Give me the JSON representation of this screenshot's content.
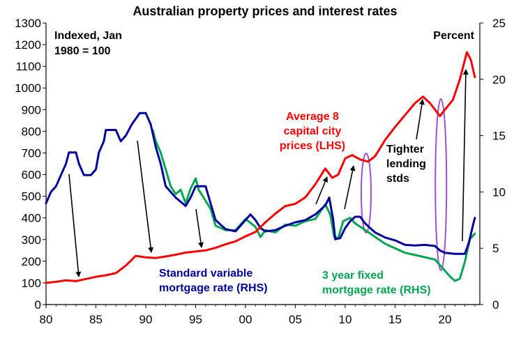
{
  "chart_data": {
    "type": "line",
    "title": "Australian property prices and interest rates",
    "left_axis": {
      "label_lines": [
        "Indexed, Jan",
        "1980 = 100"
      ],
      "range": [
        0,
        1300
      ],
      "ticks": [
        0,
        100,
        200,
        300,
        400,
        500,
        600,
        700,
        800,
        900,
        1000,
        1100,
        1200,
        1300
      ]
    },
    "right_axis": {
      "label": "Percent",
      "range": [
        0,
        25
      ],
      "ticks": [
        0,
        5,
        10,
        15,
        20,
        25
      ]
    },
    "x_axis": {
      "range": [
        1980,
        2023.5
      ],
      "ticks": [
        {
          "value": 1980,
          "label": "80"
        },
        {
          "value": 1985,
          "label": "85"
        },
        {
          "value": 1990,
          "label": "90"
        },
        {
          "value": 1995,
          "label": "95"
        },
        {
          "value": 2000,
          "label": "00"
        },
        {
          "value": 2005,
          "label": "05"
        },
        {
          "value": 2010,
          "label": "10"
        },
        {
          "value": 2015,
          "label": "15"
        },
        {
          "value": 2020,
          "label": "20"
        }
      ]
    },
    "grid": false,
    "series": [
      {
        "name": "Average 8 capital city prices (LHS)",
        "axis": "left",
        "color": "#ff0000",
        "label_lines": [
          "Average 8",
          "capital city",
          "prices (LHS)"
        ],
        "points": [
          [
            1980,
            100
          ],
          [
            1981,
            105
          ],
          [
            1982,
            112
          ],
          [
            1983,
            108
          ],
          [
            1984,
            118
          ],
          [
            1985,
            128
          ],
          [
            1986,
            135
          ],
          [
            1987,
            145
          ],
          [
            1988,
            180
          ],
          [
            1989,
            225
          ],
          [
            1990,
            218
          ],
          [
            1991,
            215
          ],
          [
            1992,
            222
          ],
          [
            1993,
            230
          ],
          [
            1994,
            240
          ],
          [
            1995,
            245
          ],
          [
            1996,
            250
          ],
          [
            1997,
            262
          ],
          [
            1998,
            278
          ],
          [
            1999,
            292
          ],
          [
            2000,
            315
          ],
          [
            2001,
            335
          ],
          [
            2002,
            380
          ],
          [
            2003,
            420
          ],
          [
            2004,
            455
          ],
          [
            2005,
            465
          ],
          [
            2006,
            495
          ],
          [
            2007,
            555
          ],
          [
            2008,
            628
          ],
          [
            2008.7,
            585
          ],
          [
            2009.3,
            600
          ],
          [
            2010,
            675
          ],
          [
            2010.7,
            690
          ],
          [
            2011.5,
            670
          ],
          [
            2012.3,
            660
          ],
          [
            2013,
            685
          ],
          [
            2014,
            760
          ],
          [
            2015,
            820
          ],
          [
            2016,
            875
          ],
          [
            2017,
            930
          ],
          [
            2017.8,
            960
          ],
          [
            2018.5,
            930
          ],
          [
            2019.5,
            870
          ],
          [
            2020,
            900
          ],
          [
            2020.8,
            945
          ],
          [
            2021.5,
            1040
          ],
          [
            2022.2,
            1165
          ],
          [
            2022.6,
            1130
          ],
          [
            2023,
            1050
          ]
        ]
      },
      {
        "name": "Standard variable mortgage rate (RHS)",
        "axis": "right",
        "color": "#0000a0",
        "label_lines": [
          "Standard variable",
          "mortgage rate (RHS)"
        ],
        "points": [
          [
            1980,
            9.0
          ],
          [
            1980.5,
            10.0
          ],
          [
            1981,
            10.5
          ],
          [
            1981.5,
            11.5
          ],
          [
            1982,
            12.5
          ],
          [
            1982.3,
            13.5
          ],
          [
            1983,
            13.5
          ],
          [
            1983.3,
            12.5
          ],
          [
            1983.8,
            11.5
          ],
          [
            1984.5,
            11.5
          ],
          [
            1985,
            12.0
          ],
          [
            1985.3,
            13.5
          ],
          [
            1985.8,
            14.5
          ],
          [
            1986,
            15.5
          ],
          [
            1987,
            15.5
          ],
          [
            1987.5,
            14.5
          ],
          [
            1988,
            15.0
          ],
          [
            1988.6,
            16.0
          ],
          [
            1989,
            16.5
          ],
          [
            1989.4,
            17.0
          ],
          [
            1990,
            17.0
          ],
          [
            1990.5,
            16.0
          ],
          [
            1991,
            14.0
          ],
          [
            1991.5,
            12.5
          ],
          [
            1992,
            10.5
          ],
          [
            1993,
            9.5
          ],
          [
            1994,
            8.75
          ],
          [
            1994.5,
            9.5
          ],
          [
            1995,
            10.5
          ],
          [
            1996,
            10.5
          ],
          [
            1996.5,
            9.0
          ],
          [
            1997,
            7.5
          ],
          [
            1998,
            6.7
          ],
          [
            1999,
            6.5
          ],
          [
            2000,
            7.5
          ],
          [
            2000.5,
            8.0
          ],
          [
            2001,
            7.5
          ],
          [
            2001.5,
            6.8
          ],
          [
            2002,
            6.5
          ],
          [
            2003,
            6.6
          ],
          [
            2004,
            7.0
          ],
          [
            2005,
            7.3
          ],
          [
            2006,
            7.5
          ],
          [
            2007,
            8.0
          ],
          [
            2008,
            8.8
          ],
          [
            2008.4,
            9.5
          ],
          [
            2008.8,
            7.5
          ],
          [
            2009,
            5.8
          ],
          [
            2009.5,
            5.9
          ],
          [
            2010,
            6.8
          ],
          [
            2010.5,
            7.4
          ],
          [
            2011,
            7.8
          ],
          [
            2011.5,
            7.8
          ],
          [
            2012,
            7.2
          ],
          [
            2012.5,
            6.8
          ],
          [
            2013,
            6.4
          ],
          [
            2014,
            5.95
          ],
          [
            2015,
            5.7
          ],
          [
            2016,
            5.3
          ],
          [
            2017,
            5.25
          ],
          [
            2018,
            5.3
          ],
          [
            2019,
            5.2
          ],
          [
            2019.5,
            4.8
          ],
          [
            2020,
            4.6
          ],
          [
            2021,
            4.5
          ],
          [
            2022,
            4.5
          ],
          [
            2022.4,
            5.5
          ],
          [
            2022.8,
            7.0
          ],
          [
            2023,
            7.7
          ]
        ]
      },
      {
        "name": "3 year fixed mortgage rate (RHS)",
        "axis": "right",
        "color": "#00a651",
        "label_lines": [
          "3 year fixed",
          "mortgage rate (RHS)"
        ],
        "points": [
          [
            1990.7,
            15.5
          ],
          [
            1991,
            14.5
          ],
          [
            1991.5,
            13.5
          ],
          [
            1992,
            12.0
          ],
          [
            1992.5,
            10.5
          ],
          [
            1993,
            9.8
          ],
          [
            1993.5,
            10.2
          ],
          [
            1994,
            9.0
          ],
          [
            1994.5,
            10.3
          ],
          [
            1995,
            11.2
          ],
          [
            1995.3,
            10.2
          ],
          [
            1995.8,
            9.5
          ],
          [
            1996.5,
            8.5
          ],
          [
            1997,
            7.0
          ],
          [
            1998,
            6.6
          ],
          [
            1999,
            6.6
          ],
          [
            2000,
            7.6
          ],
          [
            2001,
            6.9
          ],
          [
            2001.5,
            6.0
          ],
          [
            2002,
            6.6
          ],
          [
            2003,
            6.4
          ],
          [
            2004,
            7.1
          ],
          [
            2005,
            7.0
          ],
          [
            2006,
            7.4
          ],
          [
            2007,
            7.6
          ],
          [
            2008,
            8.9
          ],
          [
            2008.5,
            8.0
          ],
          [
            2008.9,
            6.0
          ],
          [
            2009.3,
            5.9
          ],
          [
            2009.8,
            7.4
          ],
          [
            2010.5,
            7.7
          ],
          [
            2011,
            7.2
          ],
          [
            2011.7,
            6.8
          ],
          [
            2012.2,
            6.5
          ],
          [
            2013,
            6.0
          ],
          [
            2014,
            5.4
          ],
          [
            2015,
            5.0
          ],
          [
            2016,
            4.6
          ],
          [
            2017,
            4.4
          ],
          [
            2018,
            4.2
          ],
          [
            2019,
            4.0
          ],
          [
            2019.5,
            3.5
          ],
          [
            2020,
            3.0
          ],
          [
            2020.5,
            2.5
          ],
          [
            2021,
            2.1
          ],
          [
            2021.5,
            2.3
          ],
          [
            2022,
            3.8
          ],
          [
            2022.5,
            5.8
          ],
          [
            2023,
            6.3
          ]
        ]
      }
    ],
    "annotations": {
      "tighter_lines": [
        "Tighter",
        "lending",
        "stds"
      ]
    },
    "colors": {
      "prices": "#ff0000",
      "variable": "#0000a0",
      "fixed": "#00a651",
      "ellipse": "#9b4fd6",
      "axis": "#000000"
    }
  }
}
